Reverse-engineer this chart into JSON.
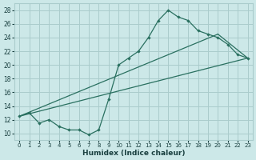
{
  "xlabel": "Humidex (Indice chaleur)",
  "bg_color": "#cce8e8",
  "grid_color": "#aacccc",
  "line_color": "#2a7060",
  "xlim": [
    -0.5,
    23.5
  ],
  "ylim": [
    9,
    29
  ],
  "xticks": [
    0,
    1,
    2,
    3,
    4,
    5,
    6,
    7,
    8,
    9,
    10,
    11,
    12,
    13,
    14,
    15,
    16,
    17,
    18,
    19,
    20,
    21,
    22,
    23
  ],
  "yticks": [
    10,
    12,
    14,
    16,
    18,
    20,
    22,
    24,
    26,
    28
  ],
  "line1_x": [
    0,
    1,
    2,
    3,
    4,
    5,
    6,
    7,
    8,
    9,
    10,
    11,
    12,
    13,
    14,
    15,
    16,
    17,
    18,
    19,
    20,
    21,
    22,
    23
  ],
  "line1_y": [
    12.5,
    13.0,
    11.5,
    12.0,
    11.0,
    10.5,
    10.5,
    9.8,
    10.5,
    15.0,
    20.0,
    21.0,
    22.0,
    24.0,
    26.5,
    28.0,
    27.0,
    26.5,
    25.0,
    24.5,
    24.0,
    23.0,
    21.5,
    21.0
  ],
  "line2_x": [
    0,
    20
  ],
  "line2_y": [
    12.5,
    24.5
  ],
  "line3_x": [
    0,
    23
  ],
  "line3_y": [
    12.5,
    21.0
  ],
  "line4_x": [
    20,
    23
  ],
  "line4_y": [
    24.5,
    21.0
  ]
}
